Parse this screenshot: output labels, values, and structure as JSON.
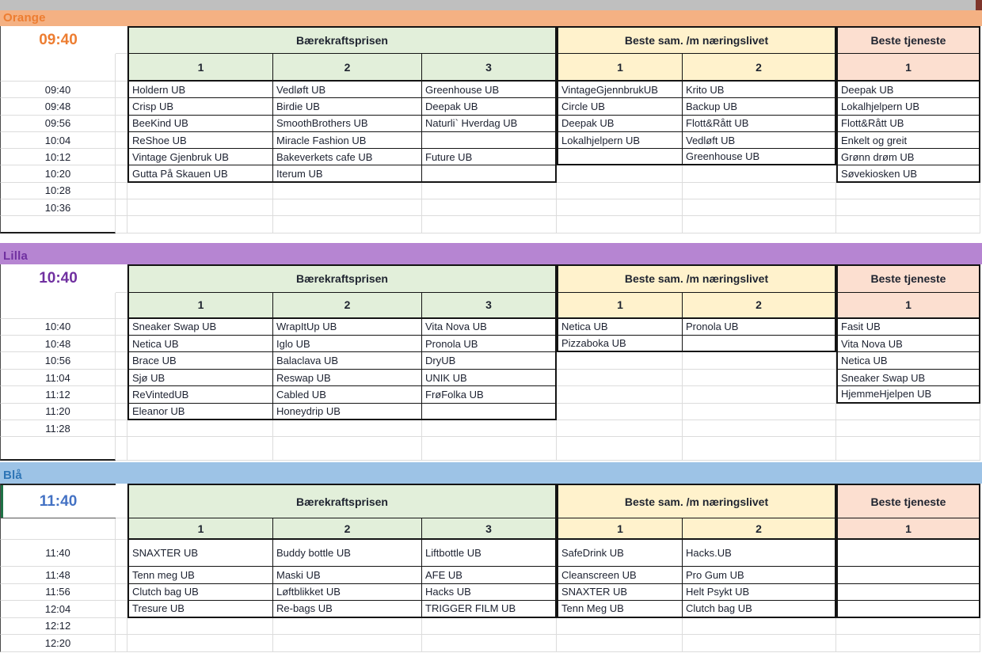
{
  "chrome": {
    "topbar_color": "#BFBFBF",
    "corner_color": "#7E352B"
  },
  "sections": [
    {
      "id": "orange",
      "title": "Orange",
      "bar_bg": "#F4B183",
      "title_color": "#ED7D31",
      "time_label": "09:40",
      "time_color": "#ED7D31",
      "times": [
        "09:40",
        "09:48",
        "09:56",
        "10:04",
        "10:12",
        "10:20",
        "10:28",
        "10:36",
        ""
      ],
      "groups": [
        {
          "name": "Bærekraftsprisen",
          "fill": "#E2EFDA",
          "box_rows": 6,
          "cols": [
            {
              "num": "1",
              "cells": [
                "Holdern UB",
                "Crisp UB",
                "BeeKind UB",
                "ReShoe UB",
                "Vintage Gjenbruk UB",
                "Gutta På Skauen UB"
              ]
            },
            {
              "num": "2",
              "cells": [
                "Vedløft UB",
                "Birdie UB",
                "SmoothBrothers UB",
                "Miracle Fashion UB",
                "Bakeverkets cafe UB",
                "Iterum UB"
              ]
            },
            {
              "num": "3",
              "cells": [
                "Greenhouse UB",
                "Deepak UB",
                "Naturli` Hverdag UB",
                "",
                "Future UB",
                ""
              ]
            }
          ]
        },
        {
          "name": "Beste sam. /m næringslivet",
          "fill": "#FFF2CC",
          "box_rows": 5,
          "cols": [
            {
              "num": "1",
              "cells": [
                "VintageGjennbrukUB",
                "Circle UB",
                "Deepak UB",
                "Lokalhjelpern UB",
                ""
              ]
            },
            {
              "num": "2",
              "cells": [
                "Krito UB",
                "Backup UB",
                "Flott&Rått UB",
                "Vedløft UB",
                "Greenhouse UB"
              ]
            }
          ]
        },
        {
          "name": "Beste tjeneste",
          "fill": "#FCDFD0",
          "box_rows": 6,
          "cols": [
            {
              "num": "1",
              "cells": [
                "Deepak UB",
                "Lokalhjelpern UB",
                "Flott&Rått UB",
                "Enkelt og greit",
                "Grønn drøm UB",
                "Søvekiosken UB"
              ]
            }
          ]
        }
      ]
    },
    {
      "id": "lilla",
      "title": "Lilla",
      "bar_bg": "#B685D2",
      "title_color": "#7030A0",
      "time_label": "10:40",
      "time_color": "#7030A0",
      "times": [
        "10:40",
        "10:48",
        "10:56",
        "11:04",
        "11:12",
        "11:20",
        "11:28",
        ""
      ],
      "groups": [
        {
          "name": "Bærekraftsprisen",
          "fill": "#E2EFDA",
          "box_rows": 6,
          "cols": [
            {
              "num": "1",
              "cells": [
                "Sneaker Swap UB",
                "Netica UB",
                "Brace UB",
                "Sjø UB",
                "ReVintedUB",
                "Eleanor UB"
              ]
            },
            {
              "num": "2",
              "cells": [
                "WrapItUp UB",
                "Iglo UB",
                "Balaclava UB",
                "Reswap UB",
                "Cabled UB",
                "Honeydrip UB"
              ]
            },
            {
              "num": "3",
              "cells": [
                "Vita Nova UB",
                "Pronola UB",
                "DryUB",
                "UNIK UB",
                "FrøFolka UB",
                ""
              ]
            }
          ]
        },
        {
          "name": "Beste sam. /m næringslivet",
          "fill": "#FFF2CC",
          "box_rows": 2,
          "cols": [
            {
              "num": "1",
              "cells": [
                "Netica UB",
                "Pizzaboka UB"
              ]
            },
            {
              "num": "2",
              "cells": [
                "Pronola UB",
                ""
              ]
            }
          ]
        },
        {
          "name": "Beste tjeneste",
          "fill": "#FCDFD0",
          "box_rows": 5,
          "cols": [
            {
              "num": "1",
              "cells": [
                "Fasit UB",
                "Vita Nova UB",
                "Netica UB",
                "Sneaker Swap UB",
                "HjemmeHjelpen UB"
              ]
            }
          ]
        }
      ]
    },
    {
      "id": "blaa",
      "title": "Blå",
      "bar_bg": "#9DC3E6",
      "title_color": "#2E75B6",
      "time_label": "11:40",
      "time_color": "#4472C4",
      "times": [
        "11:40",
        "11:48",
        "11:56",
        "12:04",
        "12:12",
        "12:20"
      ],
      "groups": [
        {
          "name": "Bærekraftsprisen",
          "fill": "#E2EFDA",
          "box_rows": 4,
          "cols": [
            {
              "num": "1",
              "cells": [
                "SNAXTER UB",
                "Tenn meg UB",
                "Clutch bag UB",
                "Tresure UB"
              ]
            },
            {
              "num": "2",
              "cells": [
                "Buddy bottle UB",
                "Maski UB",
                "Løftblikket UB",
                "Re-bags UB"
              ]
            },
            {
              "num": "3",
              "cells": [
                "Liftbottle UB",
                "AFE UB",
                "Hacks UB",
                "TRIGGER FILM UB"
              ]
            }
          ]
        },
        {
          "name": "Beste sam. /m næringslivet",
          "fill": "#FFF2CC",
          "box_rows": 4,
          "cols": [
            {
              "num": "1",
              "cells": [
                "SafeDrink UB",
                "Cleanscreen UB",
                "SNAXTER UB",
                "Tenn Meg UB"
              ]
            },
            {
              "num": "2",
              "cells": [
                "Hacks.UB",
                "Pro Gum UB",
                "Helt Psykt UB",
                "Clutch bag UB"
              ]
            }
          ]
        },
        {
          "name": "Beste tjeneste",
          "fill": "#FCDFD0",
          "box_rows": 4,
          "cols": [
            {
              "num": "1",
              "cells": [
                "",
                "",
                "",
                ""
              ]
            }
          ]
        }
      ]
    }
  ]
}
